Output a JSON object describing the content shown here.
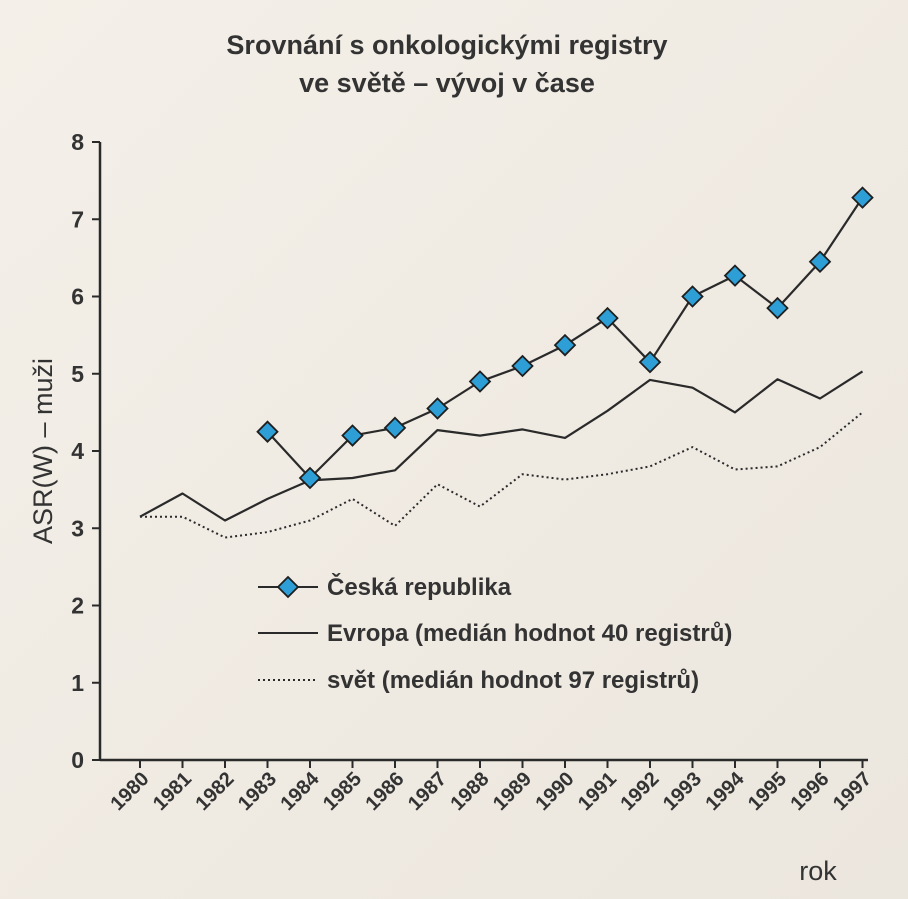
{
  "chart_data": {
    "type": "line",
    "title_lines": [
      "Srovnání s onkologickými registry",
      "ve světě – vývoj v čase"
    ],
    "ylabel": "ASR(W) – muži",
    "xlabel": "rok",
    "ylim": [
      0,
      8
    ],
    "yticks": [
      "0",
      "1",
      "2",
      "3",
      "4",
      "5",
      "6",
      "7",
      "8"
    ],
    "categories": [
      "1980",
      "1981",
      "1982",
      "1983",
      "1984",
      "1985",
      "1986",
      "1987",
      "1988",
      "1989",
      "1990",
      "1991",
      "1992",
      "1993",
      "1994",
      "1995",
      "1996",
      "1997"
    ],
    "grid": false,
    "legend_position": "center",
    "series": [
      {
        "name": "Česká republika",
        "style": "line-diamond",
        "color": "#2a2a2a",
        "marker_color": "#2e9fd6",
        "values": [
          null,
          null,
          null,
          4.25,
          3.65,
          4.2,
          4.3,
          4.55,
          4.9,
          5.1,
          5.37,
          5.72,
          5.15,
          6.0,
          6.27,
          5.85,
          6.45,
          7.28
        ]
      },
      {
        "name": "Evropa (medián hodnot 40 registrů)",
        "style": "solid",
        "color": "#2a2a2a",
        "values": [
          3.15,
          3.45,
          3.1,
          3.38,
          3.62,
          3.65,
          3.75,
          4.27,
          4.2,
          4.28,
          4.17,
          4.52,
          4.92,
          4.82,
          4.5,
          4.93,
          4.68,
          5.03
        ]
      },
      {
        "name": "svět (medián hodnot 97 registrů)",
        "style": "dotted",
        "color": "#2a2a2a",
        "values": [
          3.15,
          3.15,
          2.88,
          2.95,
          3.1,
          3.38,
          3.03,
          3.57,
          3.28,
          3.7,
          3.63,
          3.7,
          3.8,
          4.05,
          3.76,
          3.8,
          4.05,
          4.5
        ]
      }
    ]
  }
}
